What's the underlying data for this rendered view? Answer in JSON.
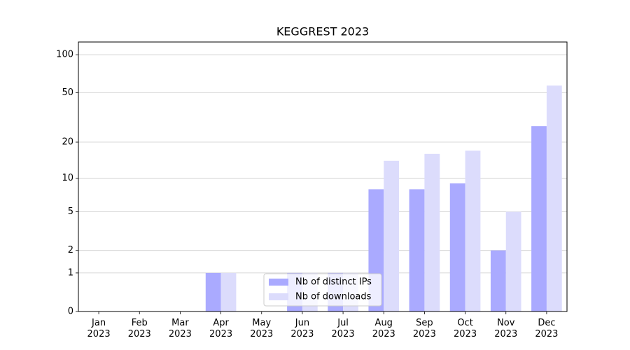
{
  "chart_data": {
    "type": "bar",
    "title": "KEGGREST 2023",
    "categories": [
      "Jan\n2023",
      "Feb\n2023",
      "Mar\n2023",
      "Apr\n2023",
      "May\n2023",
      "Jun\n2023",
      "Jul\n2023",
      "Aug\n2023",
      "Sep\n2023",
      "Oct\n2023",
      "Nov\n2023",
      "Dec\n2023"
    ],
    "series": [
      {
        "name": "Nb of distinct IPs",
        "color": "#aaaaff",
        "values": [
          0,
          0,
          0,
          1,
          0,
          1,
          1,
          8,
          8,
          9,
          2,
          27
        ]
      },
      {
        "name": "Nb of downloads",
        "color": "#dcdcfc",
        "values": [
          0,
          0,
          0,
          1,
          0,
          1,
          1,
          14,
          16,
          17,
          5,
          57
        ]
      }
    ],
    "yscale": "log1p",
    "ylim": [
      0,
      126
    ],
    "yticks": [
      0,
      1,
      2,
      5,
      10,
      20,
      50,
      100
    ],
    "grid": true,
    "legend": "lower center"
  }
}
